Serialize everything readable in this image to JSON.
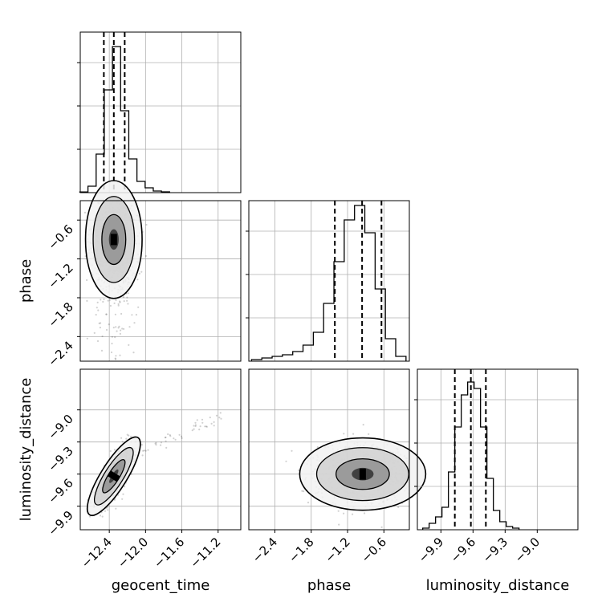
{
  "chart_data": {
    "type": "corner",
    "parameters": [
      "geocent_time",
      "phase",
      "luminosity_distance"
    ],
    "panels": [
      {
        "type": "histogram",
        "param": "geocent_time",
        "range": [
          -12.72,
          -10.95
        ],
        "bins": [
          {
            "x": -12.68,
            "y": 0.004
          },
          {
            "x": -12.59,
            "y": 0.04
          },
          {
            "x": -12.5,
            "y": 0.24
          },
          {
            "x": -12.41,
            "y": 0.64
          },
          {
            "x": -12.32,
            "y": 0.91
          },
          {
            "x": -12.23,
            "y": 0.51
          },
          {
            "x": -12.14,
            "y": 0.21
          },
          {
            "x": -12.05,
            "y": 0.07
          },
          {
            "x": -11.96,
            "y": 0.03
          },
          {
            "x": -11.87,
            "y": 0.01
          },
          {
            "x": -11.78,
            "y": 0.005
          }
        ],
        "quantiles": [
          -12.46,
          -12.35,
          -12.23
        ],
        "ticks": [
          -12.4,
          -12.0,
          -11.6,
          -11.2
        ]
      },
      {
        "type": "scatter-density",
        "x_param": "geocent_time",
        "y_param": "phase",
        "x_range": [
          -12.72,
          -10.95
        ],
        "y_range": [
          -2.78,
          -0.3
        ],
        "center": [
          -12.35,
          -0.9
        ],
        "spread": [
          0.12,
          0.35
        ],
        "ticks_x": [
          -12.4,
          -12.0,
          -11.6,
          -11.2
        ],
        "ticks_y": [
          -0.6,
          -1.2,
          -1.8,
          -2.4
        ],
        "ylabel": "phase"
      },
      {
        "type": "histogram",
        "param": "phase",
        "range": [
          -2.83,
          -0.18
        ],
        "bins": [
          {
            "x": -2.7,
            "y": 0.01
          },
          {
            "x": -2.53,
            "y": 0.02
          },
          {
            "x": -2.36,
            "y": 0.03
          },
          {
            "x": -2.19,
            "y": 0.04
          },
          {
            "x": -2.02,
            "y": 0.06
          },
          {
            "x": -1.85,
            "y": 0.1
          },
          {
            "x": -1.68,
            "y": 0.18
          },
          {
            "x": -1.51,
            "y": 0.36
          },
          {
            "x": -1.34,
            "y": 0.62
          },
          {
            "x": -1.17,
            "y": 0.88
          },
          {
            "x": -1.0,
            "y": 0.97
          },
          {
            "x": -0.83,
            "y": 0.8
          },
          {
            "x": -0.66,
            "y": 0.45
          },
          {
            "x": -0.49,
            "y": 0.14
          },
          {
            "x": -0.32,
            "y": 0.03
          }
        ],
        "quantiles": [
          -1.41,
          -0.96,
          -0.64
        ],
        "ticks": [
          -2.4,
          -1.8,
          -1.2,
          -0.6
        ]
      },
      {
        "type": "scatter-density",
        "x_param": "geocent_time",
        "y_param": "luminosity_distance",
        "x_range": [
          -12.72,
          -10.95
        ],
        "y_range": [
          -10.12,
          -8.62
        ],
        "center": [
          -12.35,
          -9.62
        ],
        "spread": [
          0.1,
          0.14
        ],
        "ticks_x": [
          -12.4,
          -12.0,
          -11.6,
          -11.2
        ],
        "ticks_y": [
          -9.0,
          -9.3,
          -9.6,
          -9.9
        ],
        "xlabel": "geocent_time",
        "ylabel": "luminosity_distance"
      },
      {
        "type": "scatter-density",
        "x_param": "phase",
        "y_param": "luminosity_distance",
        "x_range": [
          -2.83,
          -0.18
        ],
        "y_range": [
          -10.12,
          -8.62
        ],
        "center": [
          -0.95,
          -9.6
        ],
        "spread": [
          0.4,
          0.13
        ],
        "ticks_x": [
          -2.4,
          -1.8,
          -1.2,
          -0.6
        ],
        "ticks_y": [],
        "xlabel": "phase"
      },
      {
        "type": "histogram",
        "param": "luminosity_distance",
        "range": [
          -10.12,
          -8.62
        ],
        "bins": [
          {
            "x": -10.04,
            "y": 0.01
          },
          {
            "x": -9.98,
            "y": 0.04
          },
          {
            "x": -9.92,
            "y": 0.08
          },
          {
            "x": -9.86,
            "y": 0.14
          },
          {
            "x": -9.8,
            "y": 0.36
          },
          {
            "x": -9.74,
            "y": 0.64
          },
          {
            "x": -9.68,
            "y": 0.84
          },
          {
            "x": -9.62,
            "y": 0.92
          },
          {
            "x": -9.56,
            "y": 0.88
          },
          {
            "x": -9.5,
            "y": 0.64
          },
          {
            "x": -9.44,
            "y": 0.32
          },
          {
            "x": -9.38,
            "y": 0.12
          },
          {
            "x": -9.32,
            "y": 0.05
          },
          {
            "x": -9.26,
            "y": 0.02
          },
          {
            "x": -9.2,
            "y": 0.01
          }
        ],
        "quantiles": [
          -9.77,
          -9.62,
          -9.48
        ],
        "ticks": [
          -9.9,
          -9.6,
          -9.3,
          -9.0
        ],
        "xlabel": "luminosity_distance"
      }
    ],
    "grid": true
  }
}
